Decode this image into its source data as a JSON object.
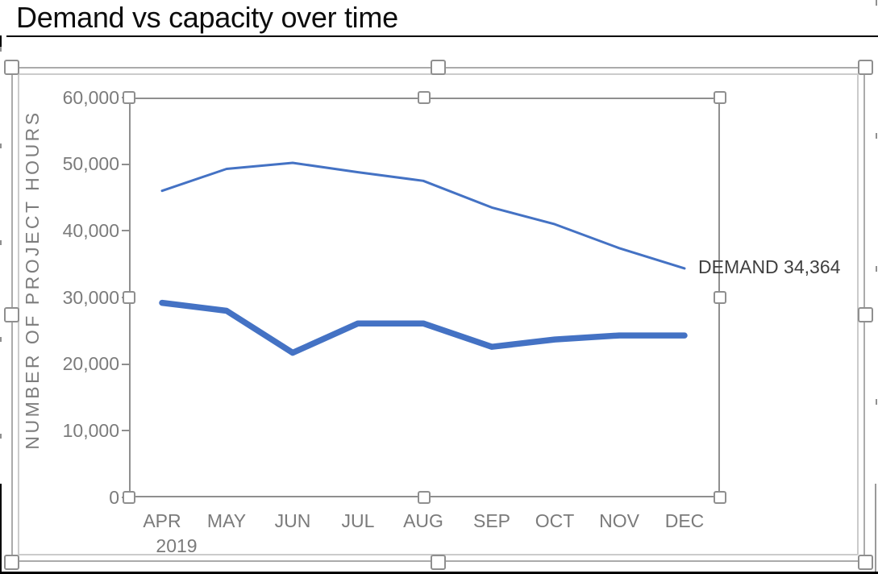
{
  "title": "Demand vs capacity over time",
  "chart_data": {
    "type": "line",
    "title": "Demand vs capacity over time",
    "categories": [
      "APR",
      "MAY",
      "JUN",
      "JUL",
      "AUG",
      "SEP",
      "OCT",
      "NOV",
      "DEC"
    ],
    "x_period_label": "2019",
    "xlabel": "",
    "ylabel": "NUMBER OF PROJECT HOURS",
    "ylim": [
      0,
      60000
    ],
    "yticks": [
      0,
      10000,
      20000,
      30000,
      40000,
      50000,
      60000
    ],
    "ytick_labels": [
      "0",
      "10,000",
      "20,000",
      "30,000",
      "40,000",
      "50,000",
      "60,000"
    ],
    "grid": false,
    "legend": "none",
    "series": [
      {
        "name": "demand",
        "style": "thin",
        "color": "#4472C4",
        "values": [
          46000,
          49300,
          50200,
          48800,
          47500,
          43500,
          41000,
          37400,
          34364
        ]
      },
      {
        "name": "capacity",
        "style": "thick",
        "color": "#4472C4",
        "values": [
          29200,
          28000,
          21700,
          26100,
          26100,
          22600,
          23700,
          24300,
          24300
        ]
      }
    ],
    "annotations": [
      {
        "text": "DEMAND 34,364",
        "series": "demand",
        "category": "DEC",
        "value": 34364
      }
    ]
  },
  "colors": {
    "line_blue": "#4472C4",
    "axis_text": "#7b7b7b",
    "annotation_text": "#3f3f3f",
    "selection_gray": "#8f8f8f",
    "title_text": "#0d0d0d"
  }
}
